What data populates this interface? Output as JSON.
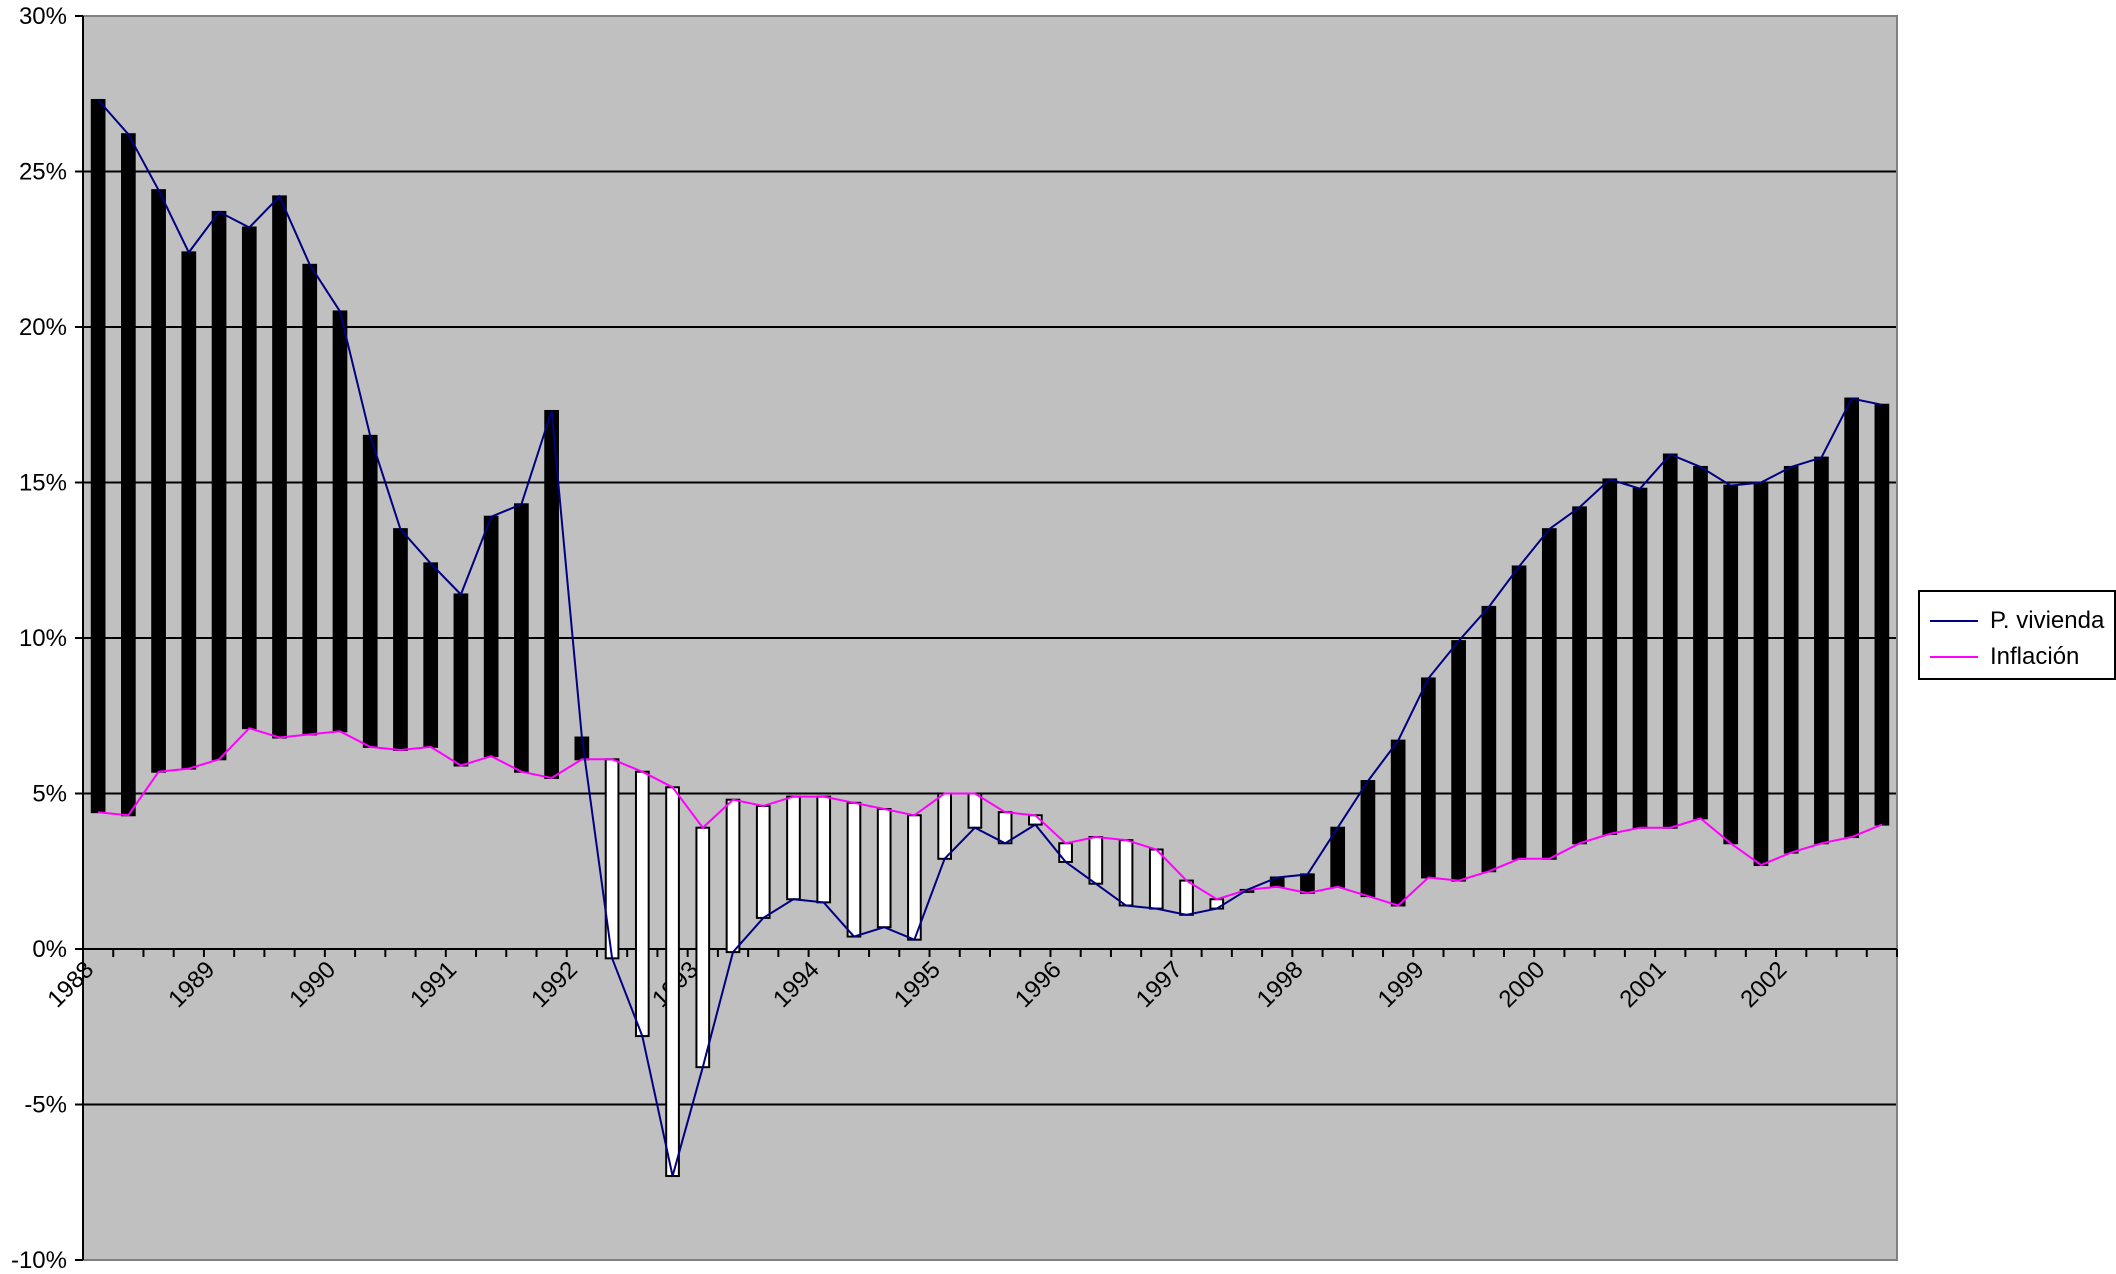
{
  "chart_data": {
    "type": "line",
    "subtype": "high-low-lines with up/down bars",
    "title": "",
    "xlabel": "",
    "ylabel": "",
    "ylim": [
      -10,
      30
    ],
    "y_ticks": [
      -10,
      -5,
      0,
      5,
      10,
      15,
      20,
      25,
      30
    ],
    "y_tick_format": "{v}%",
    "x_tick_labels": [
      "1988",
      "1989",
      "1990",
      "1991",
      "1992",
      "1993",
      "1994",
      "1995",
      "1996",
      "1997",
      "1998",
      "1999",
      "2000",
      "2001",
      "2002"
    ],
    "points_per_year": 4,
    "grid": "horizontal major gridlines",
    "plot_background": "#c0c0c0",
    "legend_position": "right",
    "up_bar_color": "#000000",
    "down_bar_color": "#ffffff",
    "series": [
      {
        "name": "P. vivienda",
        "color": "#000080",
        "values": [
          27.3,
          26.2,
          24.4,
          22.4,
          23.7,
          23.2,
          24.2,
          22.0,
          20.5,
          16.5,
          13.5,
          12.4,
          11.4,
          13.9,
          14.3,
          17.3,
          6.8,
          -0.3,
          -2.8,
          -7.3,
          -3.8,
          -0.1,
          1.0,
          1.6,
          1.5,
          0.4,
          0.7,
          0.3,
          2.9,
          3.9,
          3.4,
          4.0,
          2.8,
          2.1,
          1.4,
          1.3,
          1.1,
          1.3,
          1.9,
          2.3,
          2.4,
          3.9,
          5.4,
          6.7,
          8.7,
          9.9,
          11.0,
          12.3,
          13.5,
          14.2,
          15.1,
          14.8,
          15.9,
          15.5,
          14.9,
          15.0,
          15.5,
          15.8,
          17.7,
          17.5
        ]
      },
      {
        "name": "Inflación",
        "color": "#ff00ff",
        "values": [
          4.4,
          4.3,
          5.7,
          5.8,
          6.1,
          7.1,
          6.8,
          6.9,
          7.0,
          6.5,
          6.4,
          6.5,
          5.9,
          6.2,
          5.7,
          5.5,
          6.1,
          6.1,
          5.7,
          5.2,
          3.9,
          4.8,
          4.6,
          4.9,
          4.9,
          4.7,
          4.5,
          4.3,
          5.0,
          5.0,
          4.4,
          4.3,
          3.4,
          3.6,
          3.5,
          3.2,
          2.2,
          1.6,
          1.9,
          2.0,
          1.8,
          2.0,
          1.7,
          1.4,
          2.3,
          2.2,
          2.5,
          2.9,
          2.9,
          3.4,
          3.7,
          3.9,
          3.9,
          4.2,
          3.4,
          2.7,
          3.1,
          3.4,
          3.6,
          4.0
        ]
      }
    ]
  }
}
